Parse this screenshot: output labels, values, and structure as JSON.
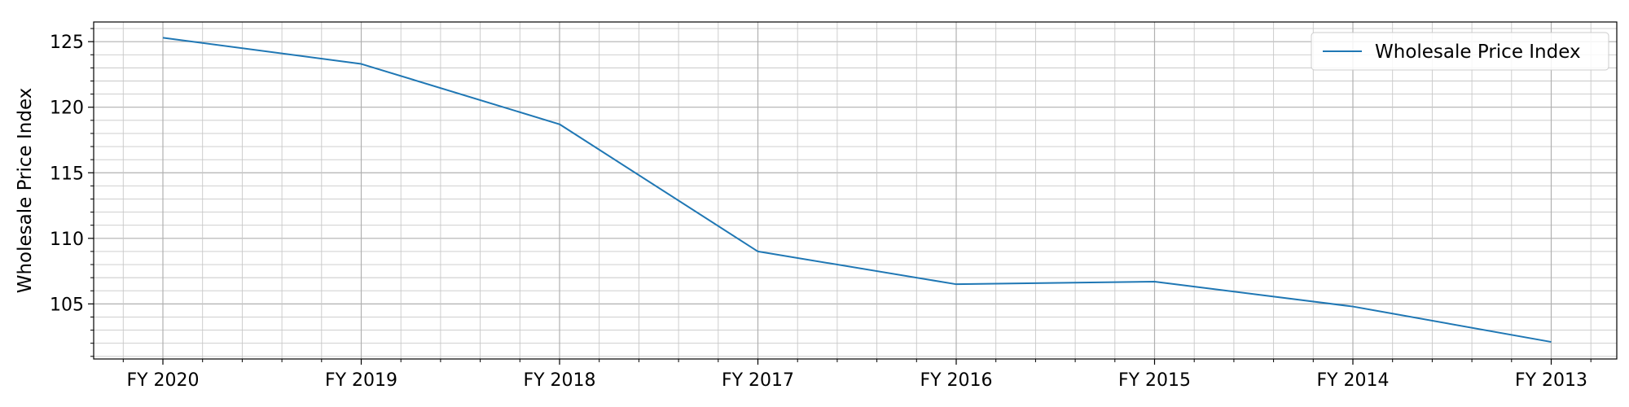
{
  "chart_data": {
    "type": "line",
    "title": "",
    "xlabel": "",
    "ylabel": "Wholesale Price Index",
    "categories": [
      "FY 2020",
      "FY 2019",
      "FY 2018",
      "FY 2017",
      "FY 2016",
      "FY 2015",
      "FY 2014",
      "FY 2013"
    ],
    "series": [
      {
        "name": "Wholesale Price Index",
        "color": "#1f77b4",
        "values": [
          125.3,
          123.3,
          118.7,
          109.0,
          106.5,
          106.7,
          104.8,
          102.1
        ]
      }
    ],
    "ylim": [
      100.8,
      126.5
    ],
    "yticks": [
      105,
      110,
      115,
      120,
      125
    ],
    "grid": true,
    "minor_grid": true,
    "legend_position": "top-right"
  }
}
